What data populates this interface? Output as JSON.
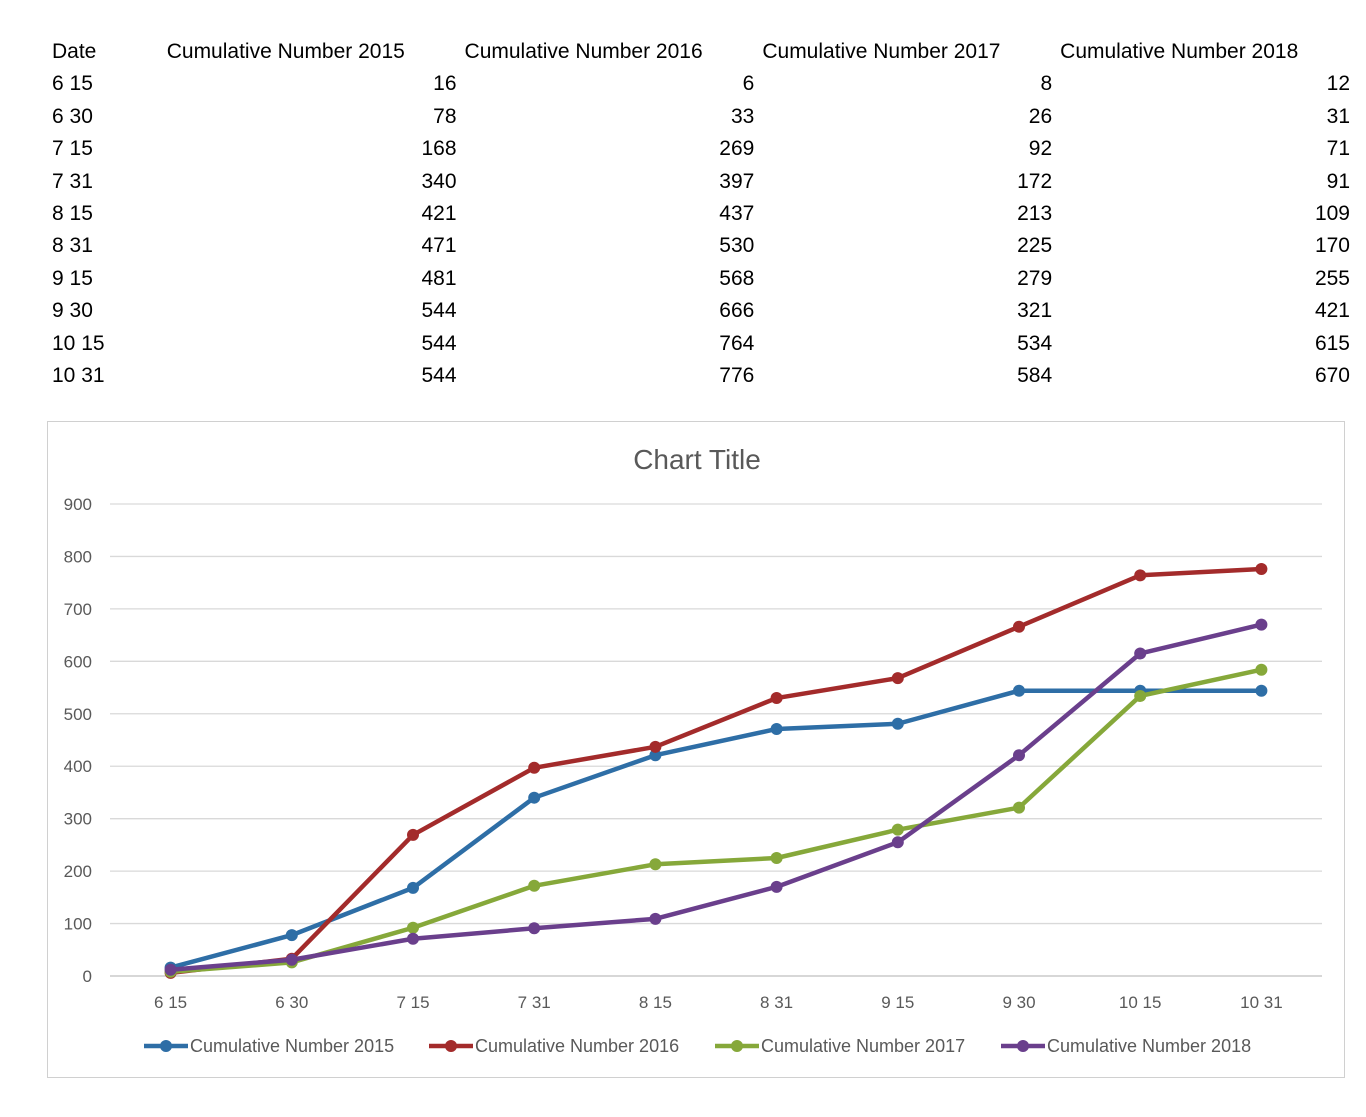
{
  "table": {
    "headers": [
      "Date",
      "Cumulative Number 2015",
      "Cumulative Number 2016",
      "Cumulative Number 2017",
      "Cumulative Number 2018"
    ],
    "rows": [
      [
        "6 15",
        "16",
        "6",
        "8",
        "12"
      ],
      [
        "6 30",
        "78",
        "33",
        "26",
        "31"
      ],
      [
        "7 15",
        "168",
        "269",
        "92",
        "71"
      ],
      [
        "7 31",
        "340",
        "397",
        "172",
        "91"
      ],
      [
        "8 15",
        "421",
        "437",
        "213",
        "109"
      ],
      [
        "8 31",
        "471",
        "530",
        "225",
        "170"
      ],
      [
        "9 15",
        "481",
        "568",
        "279",
        "255"
      ],
      [
        "9 30",
        "544",
        "666",
        "321",
        "421"
      ],
      [
        "10 15",
        "544",
        "764",
        "534",
        "615"
      ],
      [
        "10 31",
        "544",
        "776",
        "584",
        "670"
      ]
    ]
  },
  "chart_data": {
    "type": "line",
    "title": "Chart Title",
    "xlabel": "",
    "ylabel": "",
    "categories": [
      "6 15",
      "6 30",
      "7 15",
      "7 31",
      "8 15",
      "8 31",
      "9 15",
      "9 30",
      "10 15",
      "10 31"
    ],
    "ylim": [
      0,
      900
    ],
    "yticks": [
      0,
      100,
      200,
      300,
      400,
      500,
      600,
      700,
      800,
      900
    ],
    "grid": true,
    "legend": "bottom",
    "series": [
      {
        "name": "Cumulative Number 2015",
        "color": "#2e6ea6",
        "values": [
          16,
          78,
          168,
          340,
          421,
          471,
          481,
          544,
          544,
          544
        ]
      },
      {
        "name": "Cumulative Number 2016",
        "color": "#a32b2b",
        "values": [
          6,
          33,
          269,
          397,
          437,
          530,
          568,
          666,
          764,
          776
        ]
      },
      {
        "name": "Cumulative Number 2017",
        "color": "#86a83a",
        "values": [
          8,
          26,
          92,
          172,
          213,
          225,
          279,
          321,
          534,
          584
        ]
      },
      {
        "name": "Cumulative Number 2018",
        "color": "#6a3f8c",
        "values": [
          12,
          31,
          71,
          91,
          109,
          170,
          255,
          421,
          615,
          670
        ]
      }
    ]
  }
}
